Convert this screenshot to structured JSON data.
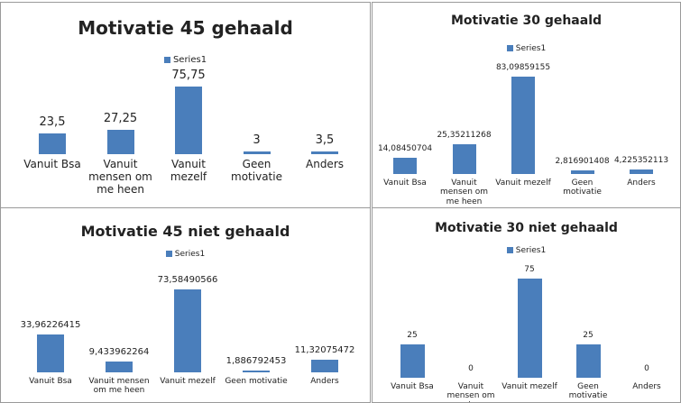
{
  "chart_data": [
    {
      "type": "bar",
      "title": "Motivatie 45 gehaald",
      "categories": [
        "Vanuit Bsa",
        "Vanuit mensen om me heen",
        "Vanuit mezelf",
        "Geen motivatie",
        "Anders"
      ],
      "series": [
        {
          "name": "Series1",
          "color": "#4a7ebb",
          "values": [
            23.5,
            27.25,
            75.75,
            3,
            3.5
          ],
          "value_labels": [
            "23,5",
            "27,25",
            "75,75",
            "3",
            "3,5"
          ]
        }
      ]
    },
    {
      "type": "bar",
      "title": "Motivatie 30 gehaald",
      "categories": [
        "Vanuit Bsa",
        "Vanuit mensen om me heen",
        "Vanuit mezelf",
        "Geen motivatie",
        "Anders"
      ],
      "series": [
        {
          "name": "Series1",
          "color": "#4a7ebb",
          "values": [
            14.08450704,
            25.35211268,
            83.09859155,
            2.816901408,
            4.225352113
          ],
          "value_labels": [
            "14,08450704",
            "25,35211268",
            "83,09859155",
            "2,816901408",
            "4,225352113"
          ]
        }
      ]
    },
    {
      "type": "bar",
      "title": "Motivatie 45 niet gehaald",
      "categories": [
        "Vanuit Bsa",
        "Vanuit mensen om me heen",
        "Vanuit mezelf",
        "Geen motivatie",
        "Anders"
      ],
      "series": [
        {
          "name": "Series1",
          "color": "#4a7ebb",
          "values": [
            33.96226415,
            9.433962264,
            73.58490566,
            1.886792453,
            11.32075472
          ],
          "value_labels": [
            "33,96226415",
            "9,433962264",
            "73,58490566",
            "1,886792453",
            "11,32075472"
          ]
        }
      ]
    },
    {
      "type": "bar",
      "title": "Motivatie 30 niet gehaald",
      "categories": [
        "Vanuit Bsa",
        "Vanuit mensen om me heen",
        "Vanuit mezelf",
        "Geen motivatie",
        "Anders"
      ],
      "series": [
        {
          "name": "Series1",
          "color": "#4a7ebb",
          "values": [
            25,
            0,
            75,
            25,
            0
          ],
          "value_labels": [
            "25",
            "0",
            "75",
            "25",
            "0"
          ]
        }
      ]
    }
  ]
}
